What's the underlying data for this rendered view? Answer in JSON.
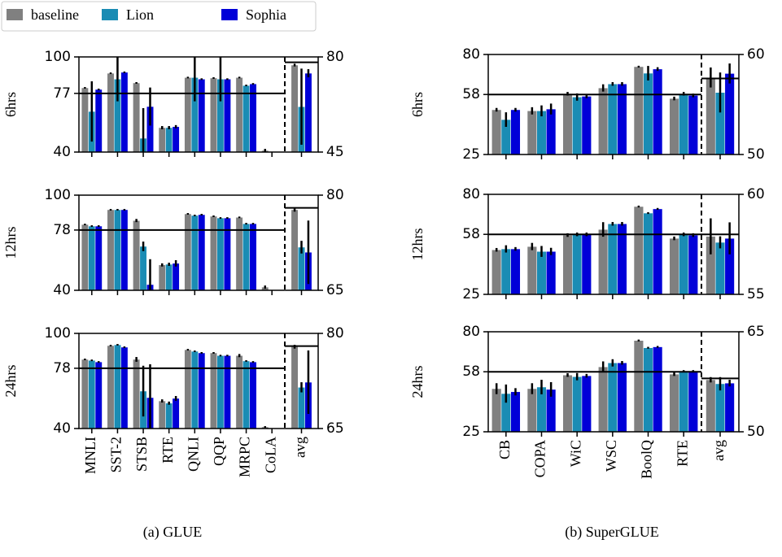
{
  "series": [
    {
      "name": "baseline",
      "color": "#808080"
    },
    {
      "name": "Lion",
      "color": "#1a8cb4"
    },
    {
      "name": "Sophia",
      "color": "#0000d8"
    }
  ],
  "chart_data": [
    {
      "type": "bar",
      "caption": "(a) GLUE",
      "categories": [
        "MNLI",
        "SST-2",
        "STSB",
        "RTE",
        "QNLI",
        "QQP",
        "MRPC",
        "CoLA"
      ],
      "avg_label": "avg",
      "panels": [
        {
          "ylabel": "6hrs",
          "ylim": [
            40,
            100
          ],
          "yticks": [
            40,
            77,
            100
          ],
          "y2lim": [
            45,
            80
          ],
          "y2ticks": [
            45,
            80
          ],
          "hline": 77,
          "y2hline": 78,
          "values": [
            [
              80.5,
              89.7,
              83.6,
              55.4,
              87,
              86.7,
              87,
              41
            ],
            [
              65.6,
              86,
              48.7,
              55.4,
              87,
              86,
              82,
              0
            ],
            [
              79.5,
              90.3,
              68.7,
              56,
              86,
              86,
              83,
              0
            ]
          ],
          "errors": [
            [
              0.5,
              0.5,
              0.5,
              1,
              0.5,
              0.5,
              0.5,
              1
            ],
            [
              19,
              14,
              19,
              1,
              15,
              14,
              0.5,
              0
            ],
            [
              0.5,
              0.5,
              12,
              1,
              0.5,
              0.5,
              0.5,
              0
            ]
          ],
          "avg": [
            77,
            61.7,
            74
          ],
          "avg_errors": [
            0.5,
            14,
            1.5
          ]
        },
        {
          "ylabel": "12hrs",
          "ylim": [
            40,
            100
          ],
          "yticks": [
            40,
            78,
            100
          ],
          "y2lim": [
            65,
            80
          ],
          "y2ticks": [
            65,
            80
          ],
          "hline": 78,
          "y2hline": 78,
          "values": [
            [
              81.5,
              90.8,
              84,
              56,
              88.2,
              86.7,
              86,
              42
            ],
            [
              80.5,
              90.8,
              67.7,
              56.4,
              87.2,
              85.6,
              82,
              0
            ],
            [
              80.5,
              90.8,
              43.6,
              57,
              87.7,
              85.6,
              82,
              0
            ]
          ],
          "errors": [
            [
              0.5,
              0.5,
              1,
              1,
              0.5,
              0.5,
              0.5,
              1
            ],
            [
              0.5,
              0.5,
              3,
              1,
              0.5,
              0.5,
              0.5,
              0
            ],
            [
              0.5,
              0.5,
              16,
              2,
              0.5,
              0.5,
              0.5,
              0
            ]
          ],
          "avg": [
            77.7,
            71.8,
            71
          ],
          "avg_errors": [
            0.3,
            1,
            5
          ]
        },
        {
          "ylabel": "24hrs",
          "ylim": [
            40,
            100
          ],
          "yticks": [
            40,
            78,
            100
          ],
          "y2lim": [
            65,
            80
          ],
          "y2ticks": [
            65,
            80
          ],
          "hline": 78,
          "y2hline": 78,
          "values": [
            [
              83.6,
              92.3,
              83.6,
              57.4,
              89.7,
              87.7,
              86,
              41
            ],
            [
              83,
              92.8,
              63.6,
              56,
              88.7,
              86,
              82.6,
              0
            ],
            [
              82,
              91.3,
              59.5,
              59,
              87.7,
              86,
              82,
              0
            ]
          ],
          "errors": [
            [
              0.5,
              0.5,
              1.5,
              1,
              0.5,
              0.5,
              1,
              0.5
            ],
            [
              0.5,
              0.5,
              16,
              1,
              0.5,
              0.5,
              0.5,
              0
            ],
            [
              0.5,
              0.5,
              21,
              1.5,
              0.5,
              0.5,
              0.5,
              0
            ]
          ],
          "avg": [
            77.9,
            71.5,
            72.3
          ],
          "avg_errors": [
            0.3,
            0.8,
            5
          ]
        }
      ]
    },
    {
      "type": "bar",
      "caption": "(b) SuperGLUE",
      "categories": [
        "CB",
        "COPA",
        "WiC",
        "WSC",
        "BoolQ",
        "RTE"
      ],
      "avg_label": "avg",
      "panels": [
        {
          "ylabel": "6hrs",
          "ylim": [
            25,
            80
          ],
          "yticks": [
            25,
            58,
            80
          ],
          "y2lim": [
            50,
            60
          ],
          "y2ticks": [
            50,
            60
          ],
          "hline": 58,
          "y2hline": 57.6,
          "values": [
            [
              49.6,
              49,
              58.4,
              61.6,
              73.3,
              55.8
            ],
            [
              44.2,
              49,
              56.6,
              63.8,
              69.7,
              58.4
            ],
            [
              49.6,
              50,
              57,
              63.8,
              72,
              57.5
            ]
          ],
          "errors": [
            [
              1,
              2,
              1,
              2,
              0.5,
              1
            ],
            [
              4,
              3,
              2,
              1,
              4,
              1
            ],
            [
              1,
              3,
              1,
              1,
              1,
              1
            ]
          ],
          "avg": [
            57.7,
            56.2,
            58.1
          ],
          "avg_errors": [
            1,
            2,
            1
          ]
        },
        {
          "ylabel": "12hrs",
          "ylim": [
            25,
            80
          ],
          "yticks": [
            25,
            58,
            80
          ],
          "y2lim": [
            55,
            60
          ],
          "y2ticks": [
            55,
            60
          ],
          "hline": 58,
          "y2hline": 58,
          "values": [
            [
              49.5,
              51.3,
              57.6,
              60.7,
              73.3,
              55.8
            ],
            [
              50,
              48.6,
              58,
              63.8,
              69.7,
              58
            ],
            [
              50,
              48.6,
              58,
              63.8,
              72,
              57.6
            ]
          ],
          "errors": [
            [
              1,
              2,
              1,
              4,
              0.5,
              1
            ],
            [
              2,
              3,
              1,
              1,
              0.5,
              1
            ],
            [
              1,
              2,
              1,
              1,
              0.5,
              1
            ]
          ],
          "avg": [
            57.9,
            57.6,
            57.8
          ],
          "avg_errors": [
            0.9,
            0.3,
            0.8
          ]
        },
        {
          "ylabel": "24hrs",
          "ylim": [
            25,
            80
          ],
          "yticks": [
            25,
            58,
            80
          ],
          "y2lim": [
            50,
            65
          ],
          "y2ticks": [
            50,
            65
          ],
          "hline": 58,
          "y2hline": 58,
          "values": [
            [
              48.7,
              48.7,
              56.2,
              60.7,
              75.2,
              56.7
            ],
            [
              46,
              49.6,
              55.3,
              62.9,
              71.2,
              58.4
            ],
            [
              47,
              48.3,
              55.8,
              62.9,
              71.7,
              58.4
            ]
          ],
          "errors": [
            [
              3,
              3,
              1,
              3,
              0.5,
              1
            ],
            [
              5,
              4,
              2,
              2,
              0.5,
              0.5
            ],
            [
              2,
              4,
              1,
              1,
              0.5,
              0.5
            ]
          ],
          "avg": [
            57.8,
            57.2,
            57.3
          ],
          "avg_errors": [
            0.4,
            1,
            0.5
          ]
        }
      ]
    }
  ]
}
